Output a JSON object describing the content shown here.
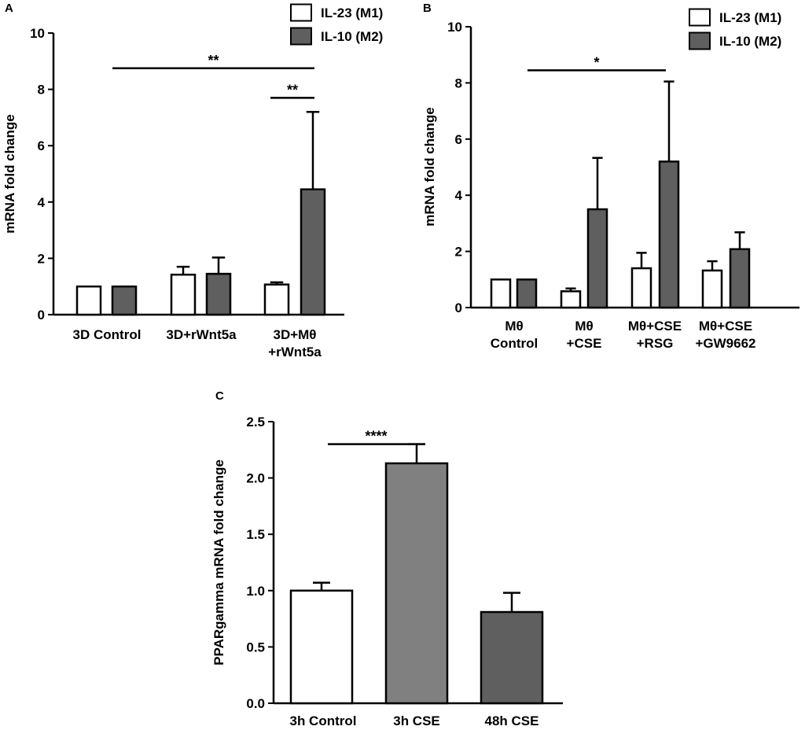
{
  "colors": {
    "il23": "#ffffff",
    "il10": "#5f5f5f",
    "c_control": "#ffffff",
    "c_cse3h": "#808080",
    "c_cse48h": "#5f5f5f",
    "ink": "#000000"
  },
  "chart_data": [
    {
      "panel": "A",
      "type": "bar",
      "title": "",
      "ylabel": "mRNA fold change",
      "xlabel": "",
      "ylim": [
        0,
        10
      ],
      "yticks": [
        "0",
        "2",
        "4",
        "6",
        "8",
        "10"
      ],
      "ytick_values": [
        0,
        2,
        4,
        6,
        8,
        10
      ],
      "categories": [
        [
          "3D Control"
        ],
        [
          "3D+rWnt5a"
        ],
        [
          "3D+Mθ",
          "+rWnt5a"
        ]
      ],
      "series": [
        {
          "name": "IL-23 (M1)",
          "values": [
            1.0,
            1.42,
            1.07
          ],
          "errors": [
            0.0,
            0.28,
            0.08
          ]
        },
        {
          "name": "IL-10 (M2)",
          "values": [
            1.0,
            1.45,
            4.45
          ],
          "errors": [
            0.0,
            0.58,
            2.75
          ]
        }
      ],
      "legend": [
        "IL-23 (M1)",
        "IL-10 (M2)"
      ],
      "legend_position": "top-right",
      "significance": [
        {
          "label": "**",
          "from": "3D Control",
          "to": "3D+Mθ +rWnt5a",
          "y": 8.75
        },
        {
          "label": "**",
          "from": "IL-23 (M1) 3D+Mθ +rWnt5a",
          "to": "IL-10 (M2) 3D+Mθ +rWnt5a",
          "y": 7.7
        }
      ]
    },
    {
      "panel": "B",
      "type": "bar",
      "title": "",
      "ylabel": "mRNA fold change",
      "xlabel": "",
      "ylim": [
        0,
        10
      ],
      "yticks": [
        "0",
        "2",
        "4",
        "6",
        "8",
        "10"
      ],
      "ytick_values": [
        0,
        2,
        4,
        6,
        8,
        10
      ],
      "categories": [
        [
          "Mθ",
          "Control"
        ],
        [
          "Mθ",
          "+CSE"
        ],
        [
          "Mθ+CSE",
          "+RSG"
        ],
        [
          "Mθ+CSE",
          "+GW9662"
        ]
      ],
      "series": [
        {
          "name": "IL-23 (M1)",
          "values": [
            1.0,
            0.58,
            1.4,
            1.32
          ],
          "errors": [
            0.0,
            0.1,
            0.55,
            0.33
          ]
        },
        {
          "name": "IL-10 (M2)",
          "values": [
            1.0,
            3.5,
            5.2,
            2.08
          ],
          "errors": [
            0.0,
            1.83,
            2.85,
            0.6
          ]
        }
      ],
      "legend": [
        "IL-23 (M1)",
        "IL-10 (M2)"
      ],
      "legend_position": "top-right",
      "significance": [
        {
          "label": "*",
          "from": "Mθ Control",
          "to": "Mθ+CSE +RSG",
          "y": 8.45
        }
      ]
    },
    {
      "panel": "C",
      "type": "bar",
      "title": "",
      "ylabel": "PPARgamma mRNA fold change",
      "xlabel": "",
      "ylim": [
        0,
        2.5
      ],
      "yticks": [
        "0.0",
        "0.5",
        "1.0",
        "1.5",
        "2.0",
        "2.5"
      ],
      "ytick_values": [
        0,
        0.5,
        1.0,
        1.5,
        2.0,
        2.5
      ],
      "categories": [
        [
          "3h Control"
        ],
        [
          "3h CSE"
        ],
        [
          "48h CSE"
        ]
      ],
      "series": [
        {
          "name": "PPARgamma",
          "values": [
            1.0,
            2.13,
            0.81
          ],
          "errors": [
            0.07,
            0.17,
            0.17
          ]
        }
      ],
      "significance": [
        {
          "label": "****",
          "from": "3h Control",
          "to": "3h CSE",
          "y": 2.3
        }
      ]
    }
  ]
}
